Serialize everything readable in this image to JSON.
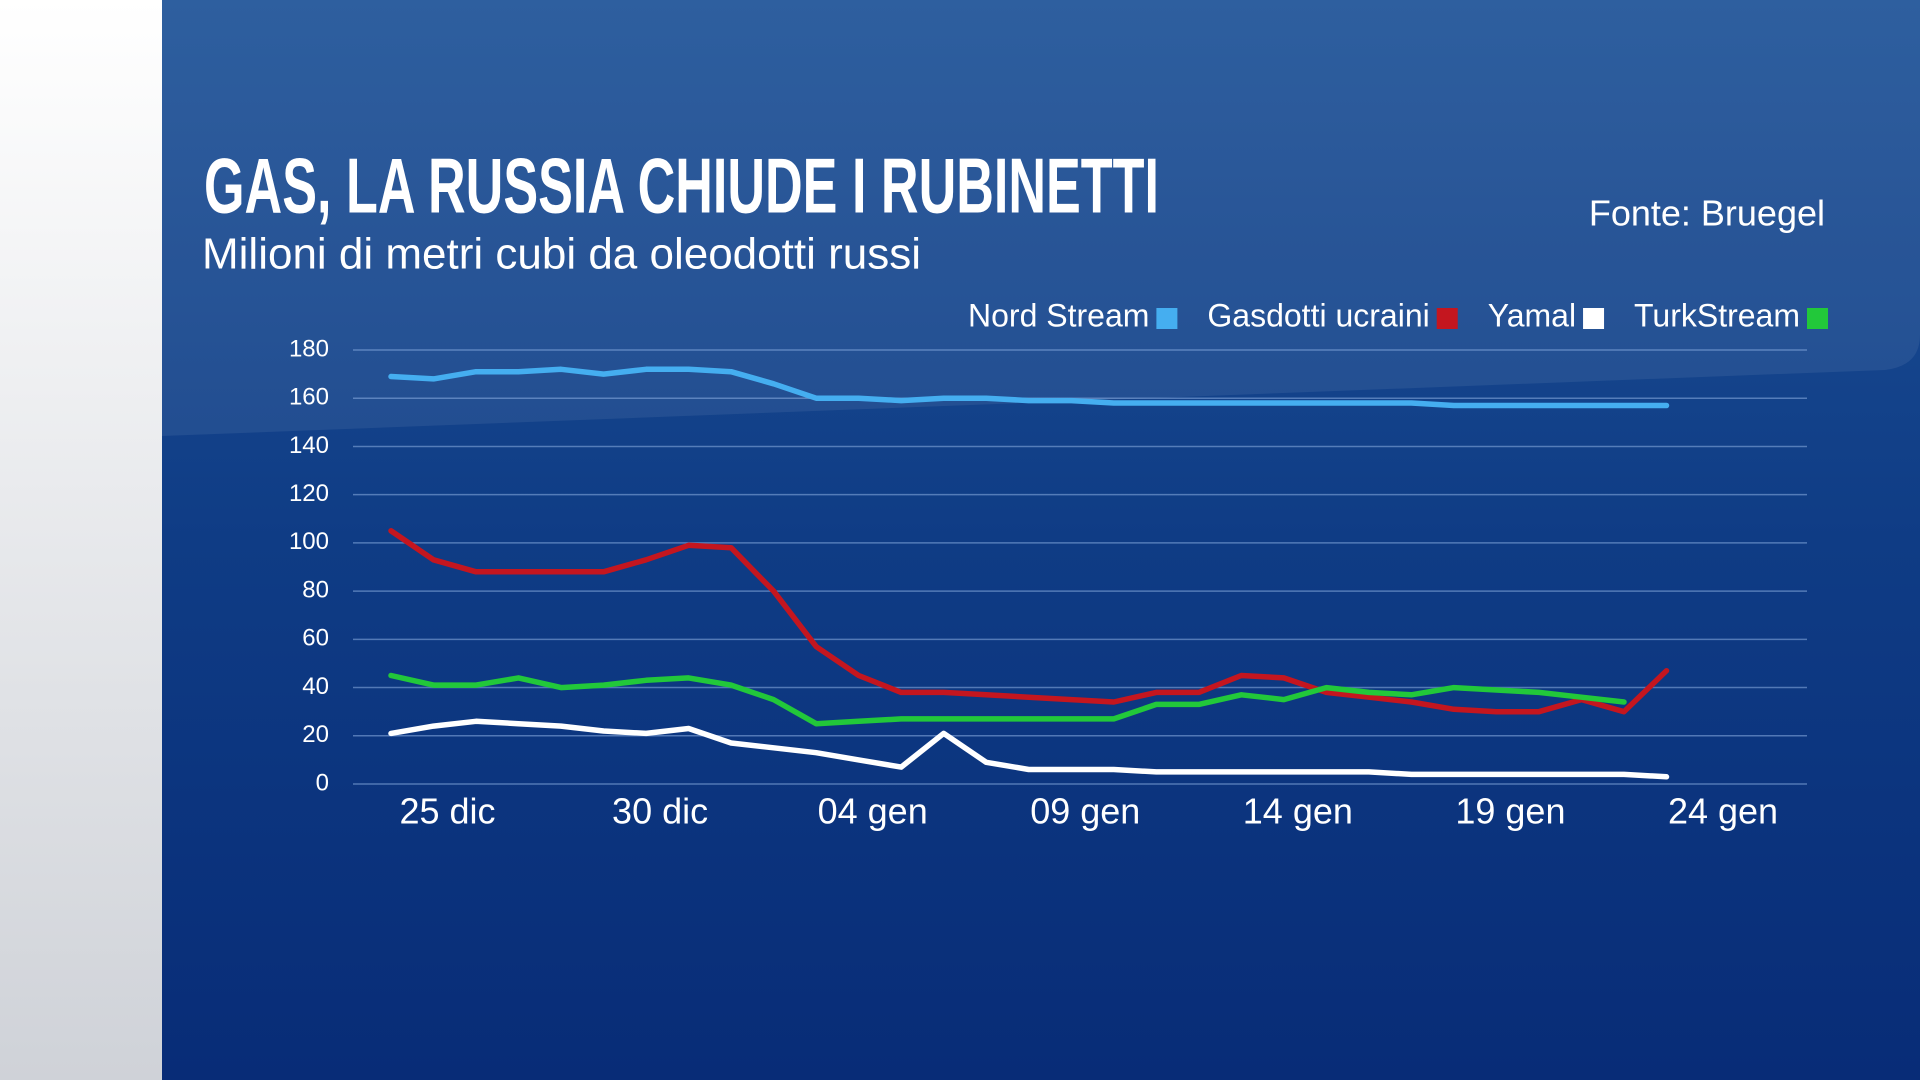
{
  "chart_data": {
    "type": "line",
    "title": "GAS, LA RUSSIA CHIUDE I RUBINETTI",
    "subtitle": "Milioni di metri cubi da oleodotti russi",
    "source": "Fonte: Bruegel",
    "categories": [
      null,
      "25 dic",
      null,
      null,
      null,
      null,
      "30 dic",
      null,
      null,
      null,
      null,
      "04 gen",
      null,
      null,
      null,
      null,
      "09 gen",
      null,
      null,
      null,
      null,
      "14 gen",
      null,
      null,
      null,
      null,
      "19 gen",
      null,
      null,
      null,
      null,
      "24 gen"
    ],
    "series": [
      {
        "name": "Nord Stream",
        "color": "#45aef0",
        "values": [
          169,
          168,
          171,
          171,
          172,
          170,
          172,
          172,
          171,
          166,
          160,
          160,
          159,
          160,
          160,
          159,
          159,
          158,
          158,
          158,
          158,
          158,
          158,
          158,
          158,
          157,
          157,
          157,
          157,
          157,
          157,
          null
        ]
      },
      {
        "name": "Gasdotti ucraini",
        "color": "#c4161f",
        "values": [
          105,
          93,
          88,
          88,
          88,
          88,
          93,
          99,
          98,
          80,
          57,
          45,
          38,
          38,
          37,
          36,
          35,
          34,
          38,
          38,
          45,
          44,
          38,
          36,
          34,
          31,
          30,
          30,
          35,
          30,
          47,
          null
        ]
      },
      {
        "name": "Yamal",
        "color": "#ffffff",
        "values": [
          21,
          24,
          26,
          25,
          24,
          22,
          21,
          23,
          17,
          15,
          13,
          10,
          7,
          21,
          9,
          6,
          6,
          6,
          5,
          5,
          5,
          5,
          5,
          5,
          4,
          4,
          4,
          4,
          4,
          4,
          3,
          null
        ]
      },
      {
        "name": "TurkStream",
        "color": "#22c83a",
        "values": [
          45,
          41,
          41,
          44,
          40,
          41,
          43,
          44,
          41,
          35,
          25,
          26,
          27,
          27,
          27,
          27,
          27,
          27,
          33,
          33,
          37,
          35,
          40,
          38,
          37,
          40,
          39,
          38,
          36,
          34,
          null,
          null
        ]
      }
    ],
    "ylim": [
      0,
      180
    ],
    "yticks": [
      0,
      20,
      40,
      60,
      80,
      100,
      120,
      140,
      160,
      180
    ],
    "grid": true,
    "legend": "top-right"
  }
}
